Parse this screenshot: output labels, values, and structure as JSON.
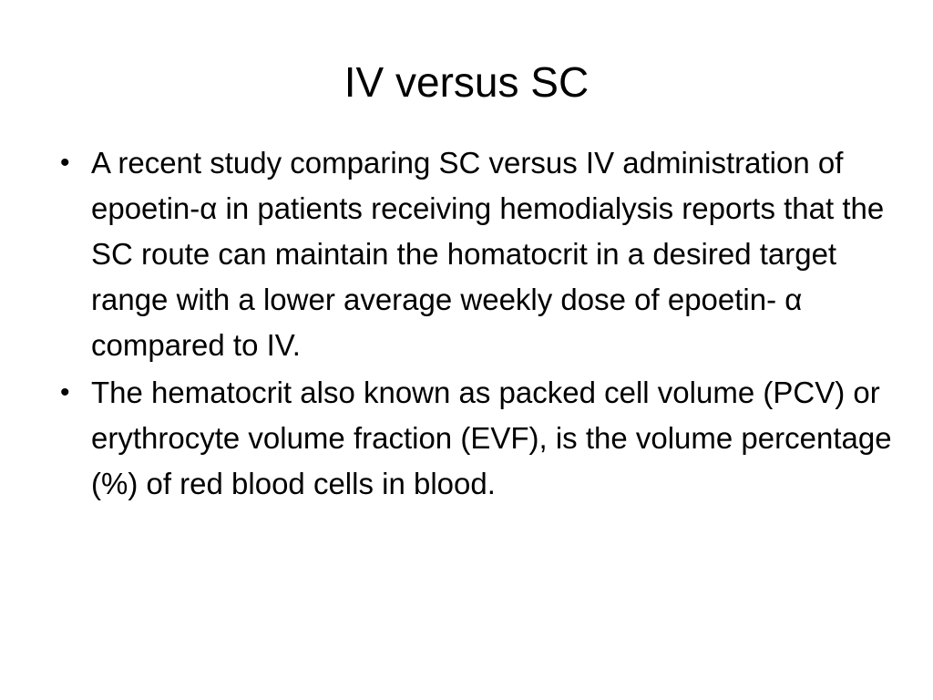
{
  "slide": {
    "title": "IV versus SC",
    "bullets": [
      {
        "text": "A recent study comparing SC versus IV administration of epoetin-α in patients receiving hemodialysis reports that the SC route can maintain the homatocrit in a desired target range with a lower average weekly dose of epoetin- α compared to IV."
      },
      {
        "text": "The hematocrit also known as packed cell volume (PCV) or erythrocyte volume fraction (EVF), is the volume percentage (%) of red blood cells in blood."
      }
    ],
    "bullet_symbol": "•"
  }
}
